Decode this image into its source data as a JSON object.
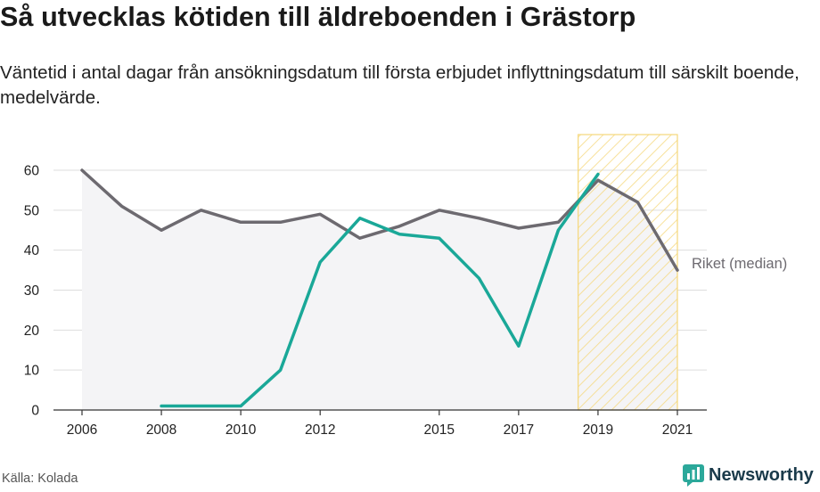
{
  "title": "Så utvecklas kötiden till äldreboenden i Grästorp",
  "subtitle": "Väntetid i antal dagar från ansökningsdatum till första erbjudet inflyttningsdatum till särskilt boende, medelvärde.",
  "source": "Källa: Kolada",
  "logo_text": "Newsworthy",
  "colors": {
    "local": "#1aa898",
    "national": "#6d6a70",
    "highlight": "#f5d77a",
    "grid": "#dddddd"
  },
  "chart_data": {
    "type": "line",
    "xlim": [
      2006,
      2021
    ],
    "ylim": [
      0,
      60
    ],
    "y_ticks": [
      "0",
      "10",
      "20",
      "30",
      "40",
      "50",
      "60"
    ],
    "x_ticks": [
      "2006",
      "2008",
      "2010",
      "2012",
      "2015",
      "2017",
      "2019",
      "2021"
    ],
    "highlight_range": [
      2018.5,
      2021
    ],
    "series": [
      {
        "key": "local",
        "x": [
          2008,
          2009,
          2010,
          2011,
          2012,
          2013,
          2014,
          2015,
          2016,
          2017,
          2018,
          2019
        ],
        "y": [
          1,
          1,
          1,
          10,
          37,
          48,
          44,
          43,
          33,
          16,
          45,
          59
        ]
      },
      {
        "key": "national",
        "name": "Riket (median)",
        "x": [
          2006,
          2007,
          2008,
          2009,
          2010,
          2011,
          2012,
          2013,
          2014,
          2015,
          2016,
          2017,
          2018,
          2019,
          2020,
          2021
        ],
        "y": [
          60,
          51,
          45,
          50,
          47,
          47,
          49,
          43,
          46,
          50,
          48,
          45.5,
          47,
          57.5,
          52,
          35
        ]
      }
    ]
  }
}
